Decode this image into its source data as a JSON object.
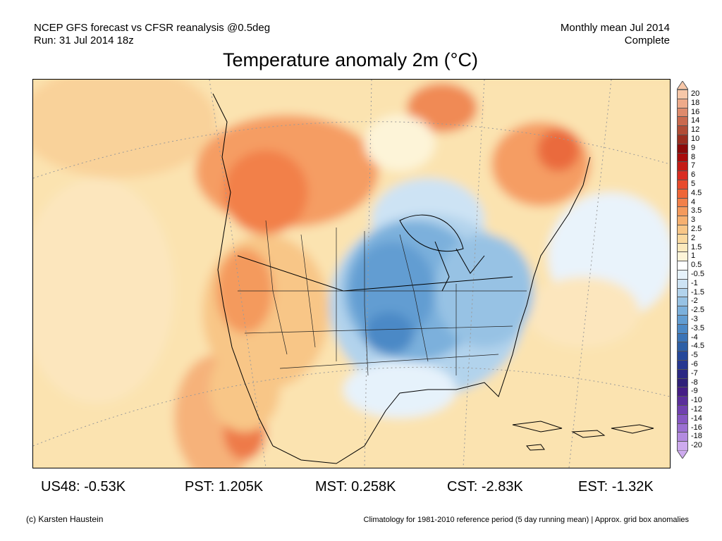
{
  "header": {
    "line1_left": "NCEP GFS forecast vs CFSR reanalysis @0.5deg",
    "line2_left": "Run: 31 Jul 2014 18z",
    "line1_right": "Monthly mean Jul 2014",
    "line2_right": "Complete"
  },
  "title": "Temperature anomaly 2m (°C)",
  "colorbar": {
    "labels": [
      "20",
      "18",
      "16",
      "14",
      "12",
      "10",
      "9",
      "8",
      "7",
      "6",
      "5",
      "4.5",
      "4",
      "3.5",
      "3",
      "2.5",
      "2",
      "1.5",
      "1",
      "0.5",
      "-0.5",
      "-1",
      "-1.5",
      "-2",
      "-2.5",
      "-3",
      "-3.5",
      "-4",
      "-4.5",
      "-5",
      "-6",
      "-7",
      "-8",
      "-9",
      "-10",
      "-12",
      "-14",
      "-16",
      "-18",
      "-20"
    ],
    "colors": [
      "#f7c7a8",
      "#eeaa8a",
      "#de8a6c",
      "#c9694e",
      "#b14c36",
      "#9a2e20",
      "#8b0a0a",
      "#a80c0c",
      "#c41b15",
      "#d92c22",
      "#e84b2d",
      "#ef6638",
      "#f2804a",
      "#f49a5d",
      "#f6b070",
      "#f8c687",
      "#fad9a0",
      "#fce9bd",
      "#fdf4d8",
      "#ffffff",
      "#e6f2fb",
      "#cde3f4",
      "#b2d3ec",
      "#97c2e4",
      "#7bb0dc",
      "#629dd2",
      "#4c89c6",
      "#3b74b7",
      "#2d5fa6",
      "#25489a",
      "#273891",
      "#2b2883",
      "#2f2079",
      "#451d86",
      "#5a2e9b",
      "#7040af",
      "#8657c2",
      "#9b70d2",
      "#b38be0",
      "#cdaaee"
    ]
  },
  "stats": [
    {
      "label": "US48:",
      "value": "-0.53K"
    },
    {
      "label": "PST:",
      "value": "1.205K"
    },
    {
      "label": "MST:",
      "value": "0.258K"
    },
    {
      "label": "CST:",
      "value": "-2.83K"
    },
    {
      "label": "EST:",
      "value": "-1.32K"
    }
  ],
  "footer": {
    "left": "(c) Karsten Haustein",
    "right": "Climatology for 1981-2010 reference period (5 day running mean) | Approx. grid box anomalies"
  }
}
